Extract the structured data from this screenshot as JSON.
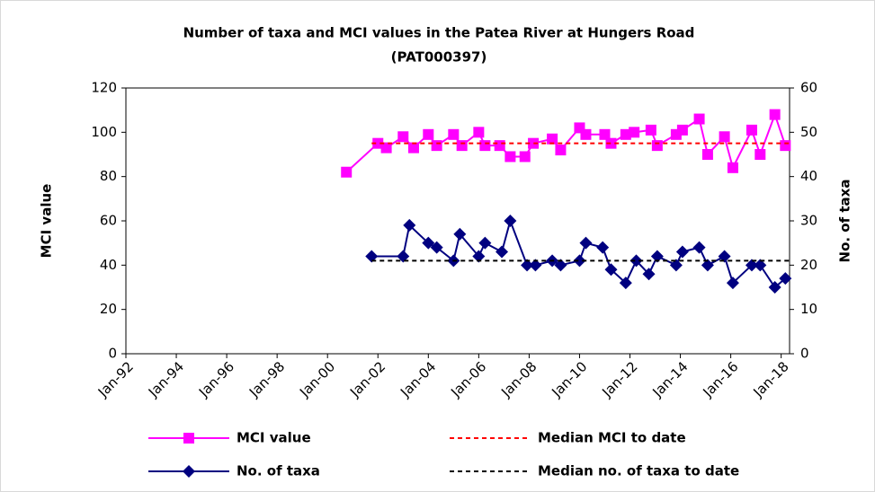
{
  "chart_data": {
    "type": "line",
    "title": "Number of taxa and MCI values in the Patea River at Hungers Road",
    "subtitle": "(PAT000397)",
    "ylabel": "MCI value",
    "y2label": "No. of taxa",
    "xlim": [
      "1992-01",
      "2018-05"
    ],
    "xticks": [
      {
        "value": "1992-01",
        "label": "Jan-92"
      },
      {
        "value": "1994-01",
        "label": "Jan-94"
      },
      {
        "value": "1996-01",
        "label": "Jan-96"
      },
      {
        "value": "1998-01",
        "label": "Jan-98"
      },
      {
        "value": "2000-01",
        "label": "Jan-00"
      },
      {
        "value": "2002-01",
        "label": "Jan-02"
      },
      {
        "value": "2004-01",
        "label": "Jan-04"
      },
      {
        "value": "2006-01",
        "label": "Jan-06"
      },
      {
        "value": "2008-01",
        "label": "Jan-08"
      },
      {
        "value": "2010-01",
        "label": "Jan-10"
      },
      {
        "value": "2012-01",
        "label": "Jan-12"
      },
      {
        "value": "2014-01",
        "label": "Jan-14"
      },
      {
        "value": "2016-01",
        "label": "Jan-16"
      },
      {
        "value": "2018-01",
        "label": "Jan-18"
      }
    ],
    "ylim": [
      0,
      120
    ],
    "yticks": [
      0,
      20,
      40,
      60,
      80,
      100,
      120
    ],
    "y2lim": [
      0,
      60
    ],
    "y2ticks": [
      0,
      10,
      20,
      30,
      40,
      50,
      60
    ],
    "grid": false,
    "legend": "bottom",
    "series": [
      {
        "name": "MCI value",
        "color": "#ff00ff",
        "marker": "square",
        "dash": false,
        "x": [
          "2000-10",
          "2002-01",
          "2002-05",
          "2003-01",
          "2003-06",
          "2004-01",
          "2004-05",
          "2005-01",
          "2005-05",
          "2006-01",
          "2006-04",
          "2006-11",
          "2007-04",
          "2007-11",
          "2008-03",
          "2008-12",
          "2009-04",
          "2010-01",
          "2010-04",
          "2011-01",
          "2011-04",
          "2011-11",
          "2012-03",
          "2012-11",
          "2013-02",
          "2013-11",
          "2014-02",
          "2014-10",
          "2015-02",
          "2015-10",
          "2016-02",
          "2016-11",
          "2017-03",
          "2017-10",
          "2018-03"
        ],
        "values": [
          82,
          95,
          93,
          98,
          93,
          99,
          94,
          99,
          94,
          100,
          94,
          94,
          89,
          89,
          95,
          97,
          92,
          102,
          99,
          99,
          95,
          99,
          100,
          101,
          94,
          99,
          101,
          106,
          90,
          98,
          84,
          101,
          90,
          108,
          94
        ]
      },
      {
        "name": "No. of taxa",
        "color": "#000080",
        "marker": "diamond",
        "dash": false,
        "axis": "y2",
        "x": [
          "2001-10",
          "2003-01",
          "2003-04",
          "2004-01",
          "2004-05",
          "2005-01",
          "2005-04",
          "2006-01",
          "2006-04",
          "2006-12",
          "2007-04",
          "2007-12",
          "2008-04",
          "2008-12",
          "2009-04",
          "2010-01",
          "2010-04",
          "2010-12",
          "2011-04",
          "2011-11",
          "2012-04",
          "2012-10",
          "2013-02",
          "2013-11",
          "2014-02",
          "2014-10",
          "2015-02",
          "2015-10",
          "2016-02",
          "2016-11",
          "2017-03",
          "2017-10",
          "2018-03"
        ],
        "values": [
          22,
          22,
          29,
          25,
          24,
          21,
          27,
          22,
          25,
          23,
          30,
          20,
          20,
          21,
          20,
          21,
          25,
          24,
          19,
          16,
          21,
          18,
          22,
          20,
          23,
          24,
          20,
          22,
          16,
          20,
          20,
          15,
          17
        ]
      },
      {
        "name": "Median MCI to date",
        "color": "#ff0000",
        "marker": "none",
        "dash": true,
        "x": [
          "2001-10",
          "2018-05"
        ],
        "values": [
          95,
          95
        ]
      },
      {
        "name": "Median no. of taxa to date",
        "color": "#000000",
        "marker": "none",
        "dash": true,
        "axis": "y2",
        "x": [
          "2001-10",
          "2018-05"
        ],
        "values": [
          21,
          21
        ]
      }
    ]
  }
}
